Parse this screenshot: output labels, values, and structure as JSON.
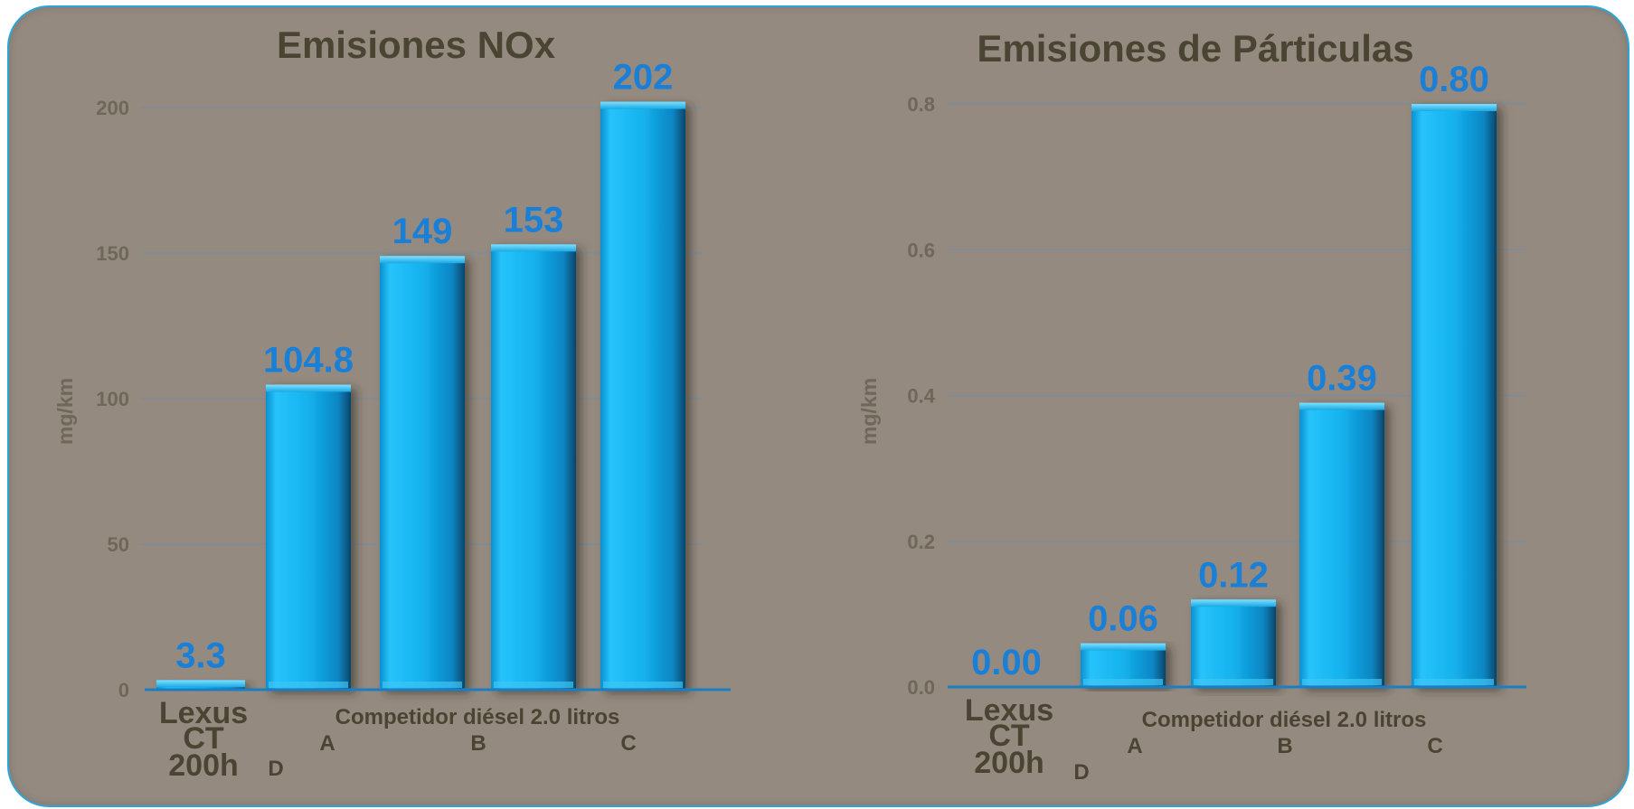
{
  "chart_data": [
    {
      "type": "bar",
      "title": "Emisiones NOx",
      "ylabel": "mg/km",
      "ylim": [
        0,
        200
      ],
      "yticks": [
        "0",
        "50",
        "100",
        "150",
        "200"
      ],
      "categories": [
        "Lexus CT 200h",
        "A",
        "B",
        "C",
        "D"
      ],
      "values": [
        3.3,
        104.8,
        149,
        153,
        202
      ],
      "value_labels": [
        "3.3",
        "104.8",
        "149",
        "153",
        "202"
      ],
      "group_label": "Competidor diésel 2.0 litros",
      "grid": true,
      "bar_color": "#12b4f0"
    },
    {
      "type": "bar",
      "title": "Emisiones de Párticulas",
      "ylabel": "mg/km",
      "ylim": [
        0,
        0.8
      ],
      "yticks": [
        "0.0",
        "0.2",
        "0.4",
        "0.6",
        "0.8"
      ],
      "categories": [
        "Lexus CT 200h",
        "A",
        "B",
        "C",
        "D"
      ],
      "values": [
        0.0,
        0.06,
        0.12,
        0.39,
        0.8
      ],
      "value_labels": [
        "0.00",
        "0.06",
        "0.12",
        "0.39",
        "0.80"
      ],
      "group_label": "Competidor diésel 2.0 litros",
      "grid": true,
      "bar_color": "#12b4f0"
    }
  ],
  "lexus_label_lines": [
    "Lexus",
    "CT",
    "200h"
  ]
}
